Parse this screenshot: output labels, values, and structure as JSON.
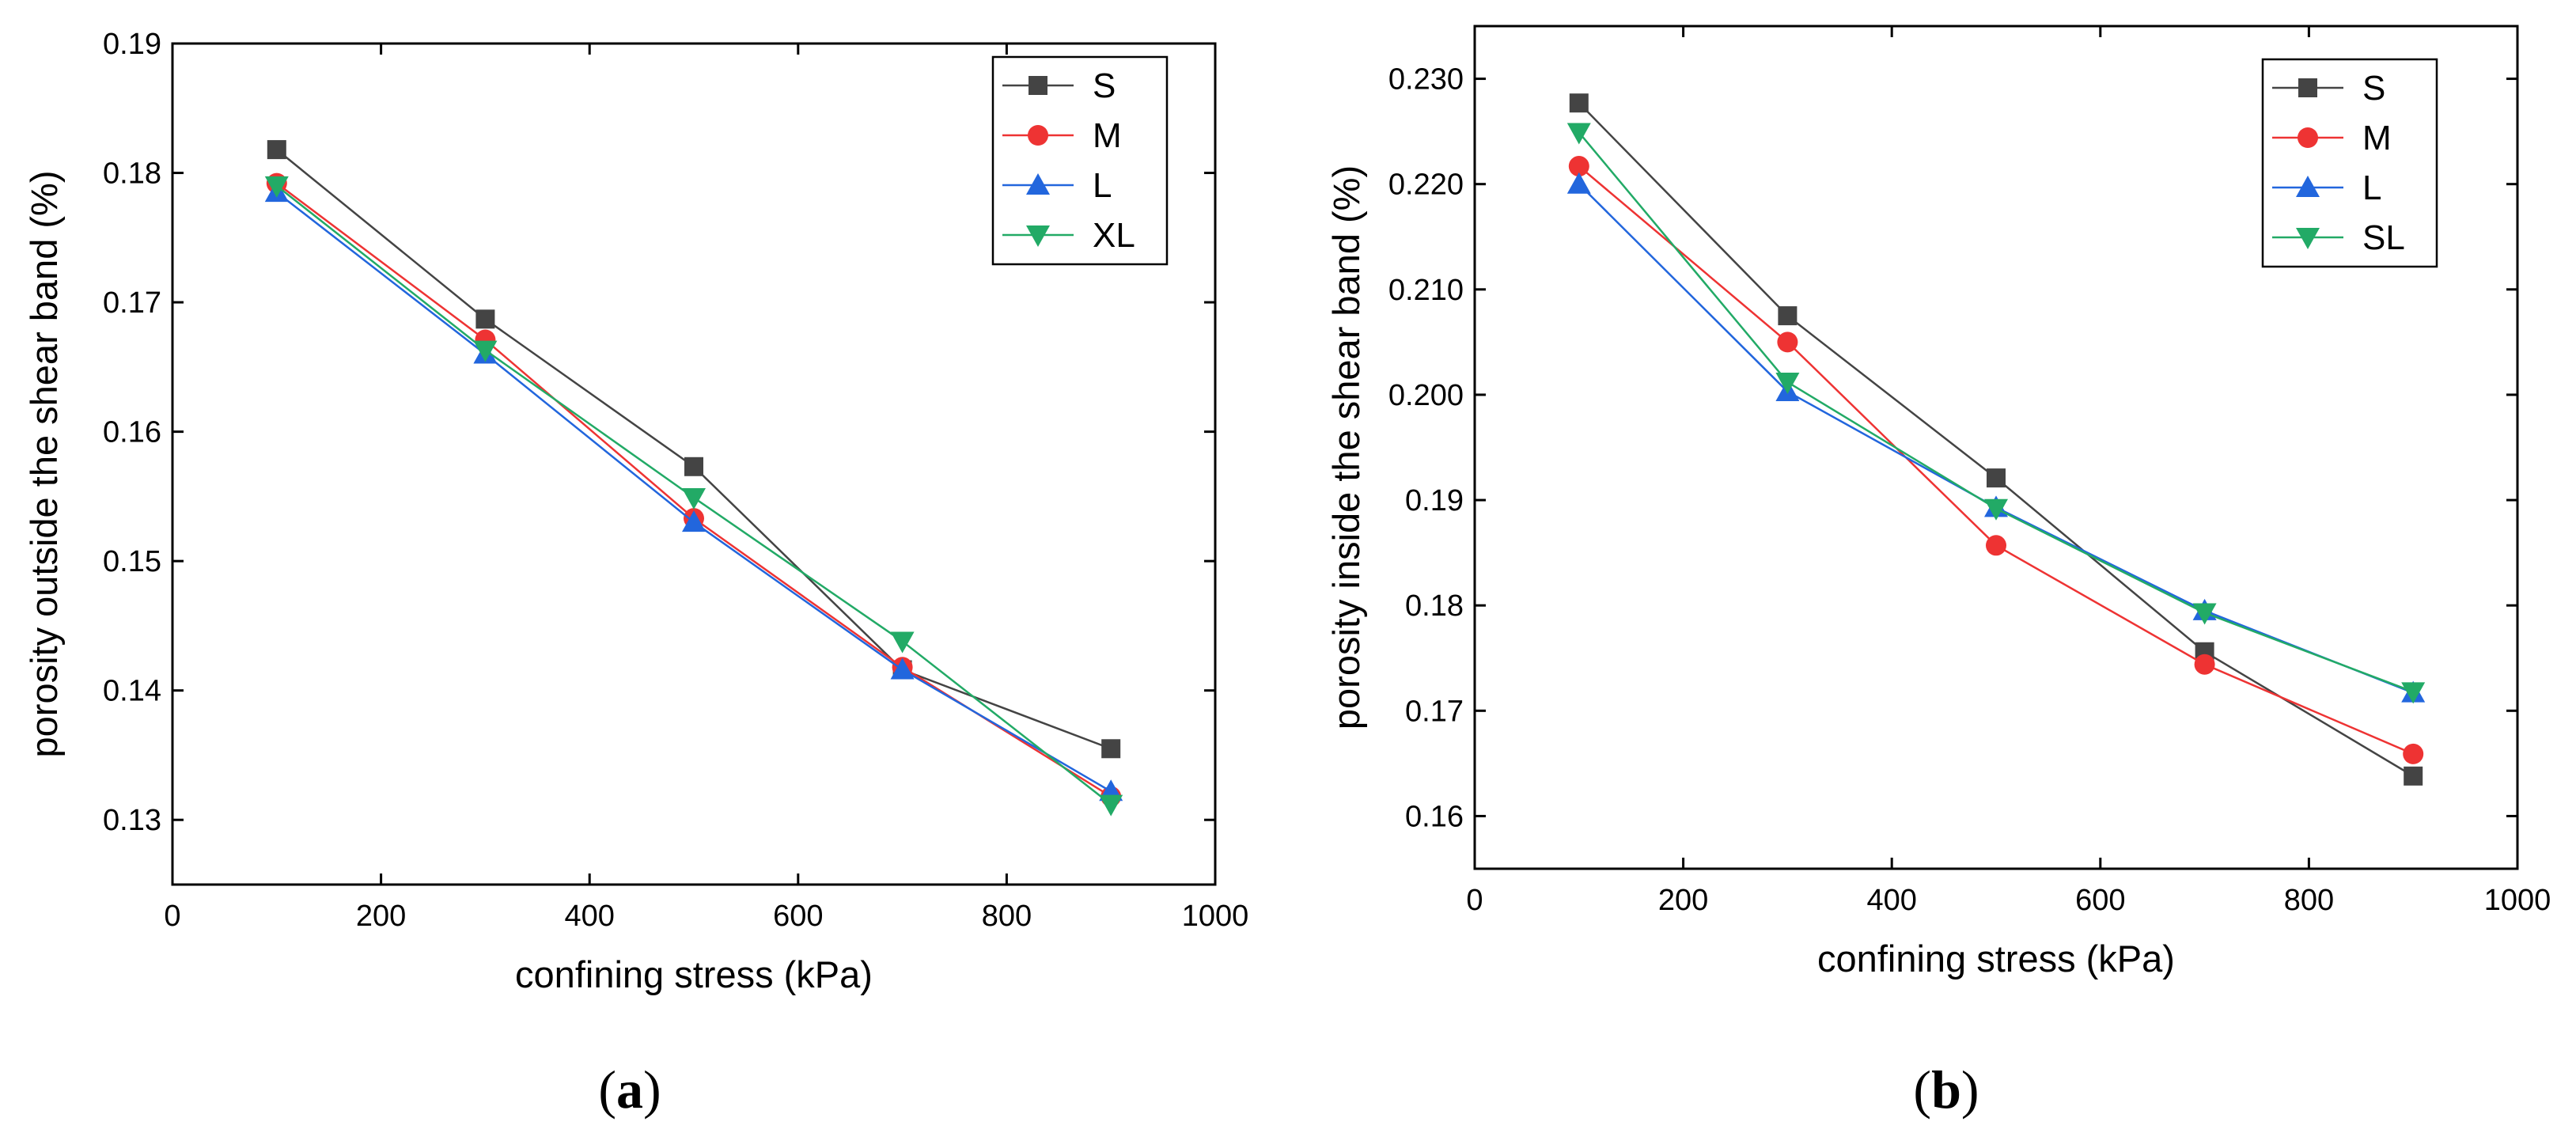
{
  "chart_data": [
    {
      "type": "line",
      "panel_label": "(a)",
      "panel_letter": "a",
      "xlabel": "confining stress (kPa)",
      "ylabel": "porosity outside the shear band (%)",
      "xlim": [
        0,
        1000
      ],
      "ylim": [
        0.125,
        0.19
      ],
      "x_ticks": [
        0,
        200,
        400,
        600,
        800,
        1000
      ],
      "x_tick_labels": [
        "0",
        "200",
        "400",
        "600",
        "800",
        "1000"
      ],
      "y_ticks": [
        0.13,
        0.14,
        0.15,
        0.16,
        0.17,
        0.18,
        0.19
      ],
      "y_tick_labels": [
        "0.13",
        "0.14",
        "0.15",
        "0.16",
        "0.17",
        "0.18",
        "0.19"
      ],
      "legend_position": "top-right",
      "x": [
        100,
        300,
        500,
        700,
        900
      ],
      "series": [
        {
          "name": "S",
          "color": "#444444",
          "marker": "square",
          "values": [
            0.1818,
            0.1687,
            0.1573,
            0.1416,
            0.1355
          ]
        },
        {
          "name": "M",
          "color": "#ee3333",
          "marker": "circle",
          "values": [
            0.1792,
            0.1671,
            0.1533,
            0.1418,
            0.1318
          ]
        },
        {
          "name": "L",
          "color": "#2266dd",
          "marker": "triangle-up",
          "values": [
            0.1785,
            0.166,
            0.153,
            0.1416,
            0.1322
          ]
        },
        {
          "name": "XL",
          "color": "#22aa66",
          "marker": "triangle-down",
          "values": [
            0.179,
            0.1663,
            0.1549,
            0.1438,
            0.1312
          ]
        }
      ]
    },
    {
      "type": "line",
      "panel_label": "(b)",
      "panel_letter": "b",
      "xlabel": "confining stress (kPa)",
      "ylabel": "porosity inside the shear band (%)",
      "xlim": [
        0,
        1000
      ],
      "ylim": [
        0.155,
        0.235
      ],
      "x_ticks": [
        0,
        200,
        400,
        600,
        800,
        1000
      ],
      "x_tick_labels": [
        "0",
        "200",
        "400",
        "600",
        "800",
        "1000"
      ],
      "y_ticks": [
        0.16,
        0.17,
        0.18,
        0.19,
        0.2,
        0.21,
        0.22,
        0.23
      ],
      "y_tick_labels": [
        "0.16",
        "0.17",
        "0.18",
        "0.19",
        "0.200",
        "0.210",
        "0.220",
        "0.230"
      ],
      "legend_position": "top-right",
      "x": [
        100,
        300,
        500,
        700,
        900
      ],
      "series": [
        {
          "name": "S",
          "color": "#444444",
          "marker": "square",
          "values": [
            0.2277,
            0.2075,
            0.1921,
            0.1756,
            0.1638
          ]
        },
        {
          "name": "M",
          "color": "#ee3333",
          "marker": "circle",
          "values": [
            0.2217,
            0.205,
            0.1857,
            0.1744,
            0.1659
          ]
        },
        {
          "name": "L",
          "color": "#2266dd",
          "marker": "triangle-up",
          "values": [
            0.22,
            0.2003,
            0.1893,
            0.1795,
            0.1717
          ]
        },
        {
          "name": "SL",
          "color": "#22aa66",
          "marker": "triangle-down",
          "values": [
            0.2249,
            0.2012,
            0.1892,
            0.1793,
            0.1718
          ]
        }
      ]
    }
  ]
}
